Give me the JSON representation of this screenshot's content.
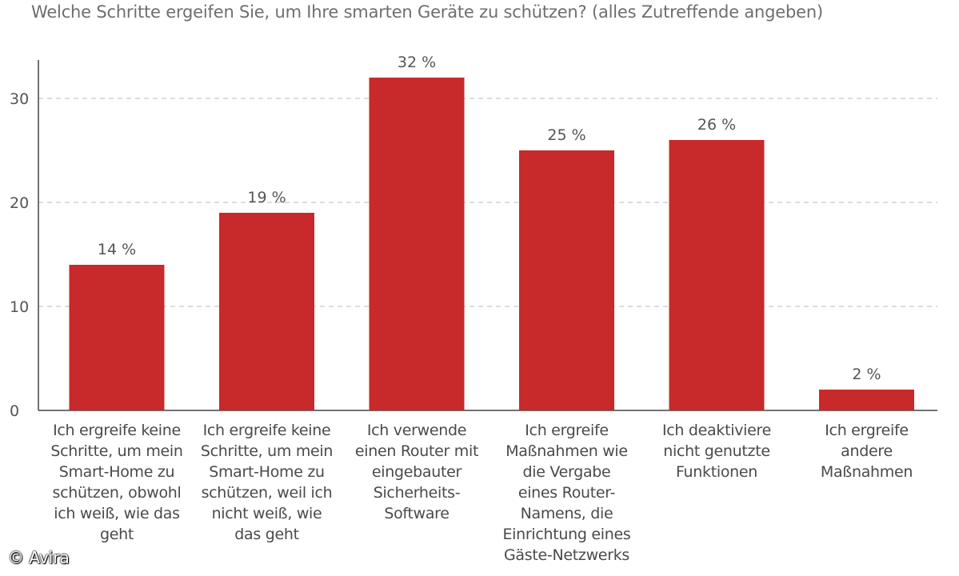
{
  "chart_data": {
    "type": "bar",
    "title": "Welche Schritte ergeifen Sie, um Ihre smarten Geräte zu schützen? (alles Zutreffende angeben)",
    "categories": [
      "Ich ergreife keine Schritte, um mein Smart-Home zu schützen, obwohl ich weiß, wie das geht",
      "Ich ergreife keine Schritte, um mein Smart-Home zu schützen, weil ich nicht weiß, wie das geht",
      "Ich verwende einen Router mit eingebauter Sicherheits-Software",
      "Ich ergreife Maßnahmen wie die Vergabe eines Router-Namens, die Einrichtung eines Gäste-Netzwerks",
      "Ich deaktiviere nicht genutzte Funktionen",
      "Ich ergreife andere Maßnahmen"
    ],
    "category_lines": [
      [
        "Ich ergreife keine",
        "Schritte, um mein",
        "Smart-Home zu",
        "schützen, obwohl",
        "ich weiß, wie das",
        "geht"
      ],
      [
        "Ich ergreife keine",
        "Schritte, um mein",
        "Smart-Home zu",
        "schützen, weil ich",
        "nicht weiß, wie",
        "das geht"
      ],
      [
        "Ich verwende",
        "einen Router mit",
        "eingebauter",
        "Sicherheits-",
        "Software"
      ],
      [
        "Ich ergreife",
        "Maßnahmen wie",
        "die Vergabe",
        "eines Router-",
        "Namens, die",
        "Einrichtung eines",
        "Gäste-Netzwerks"
      ],
      [
        "Ich deaktiviere",
        "nicht genutzte",
        "Funktionen"
      ],
      [
        "Ich ergreife",
        "andere",
        "Maßnahmen"
      ]
    ],
    "values": [
      14,
      19,
      32,
      25,
      26,
      2
    ],
    "value_labels": [
      "14 %",
      "19 %",
      "32 %",
      "25 %",
      "26 %",
      "2 %"
    ],
    "yticks": [
      0,
      10,
      20,
      30
    ],
    "ylim": [
      0,
      34
    ],
    "xlabel": "",
    "ylabel": "",
    "grid": true,
    "grid_style": "dashed",
    "bar_color": "#c8292a",
    "grid_color": "#c8c8c8",
    "axis_color": "#444444"
  },
  "credit": "© Avira"
}
